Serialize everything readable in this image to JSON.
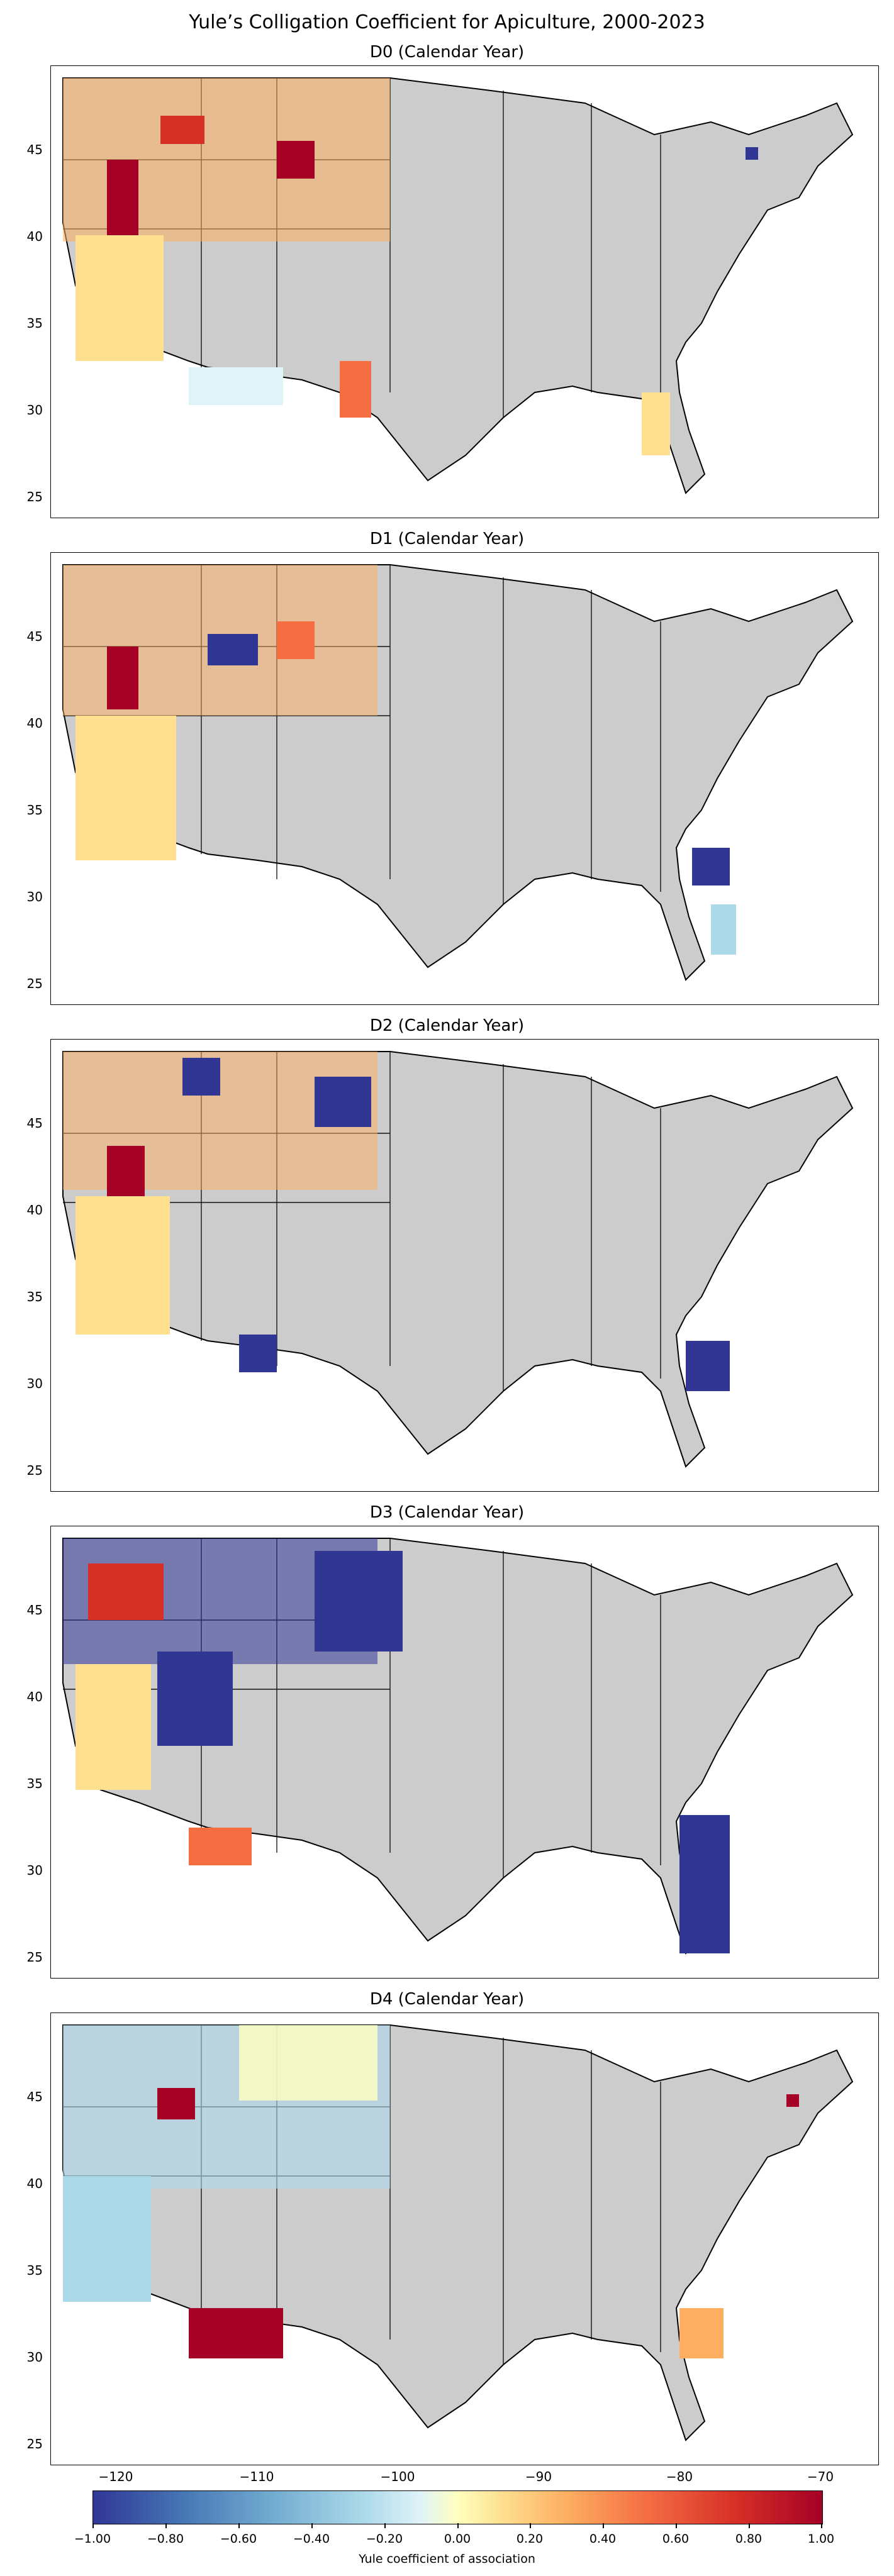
{
  "title": "Yule’s Colligation Coefficient for Apiculture, 2000-2023",
  "panels": [
    {
      "title": "D0 (Calendar Year)"
    },
    {
      "title": "D1 (Calendar Year)"
    },
    {
      "title": "D2 (Calendar Year)"
    },
    {
      "title": "D3 (Calendar Year)"
    },
    {
      "title": "D4 (Calendar Year)"
    }
  ],
  "y_ticks": [
    "45",
    "40",
    "35",
    "30",
    "25"
  ],
  "x_ticks": [
    "−120",
    "−110",
    "−100",
    "−90",
    "−80",
    "−70"
  ],
  "colorbar": {
    "label": "Yule coefficient of association",
    "ticks": [
      "−1.00",
      "−0.80",
      "−0.60",
      "−0.40",
      "−0.20",
      "0.00",
      "0.20",
      "0.40",
      "0.60",
      "0.80",
      "1.00"
    ],
    "cmap": [
      "#313695",
      "#4575b4",
      "#74add1",
      "#abd9e9",
      "#e0f3f8",
      "#ffffbf",
      "#fee090",
      "#fdae61",
      "#f46d43",
      "#d73027",
      "#a50026"
    ],
    "no_data_color": "#cccccc"
  },
  "map_extent": {
    "lon": [
      -125,
      -66
    ],
    "lat": [
      24,
      50
    ]
  }
}
